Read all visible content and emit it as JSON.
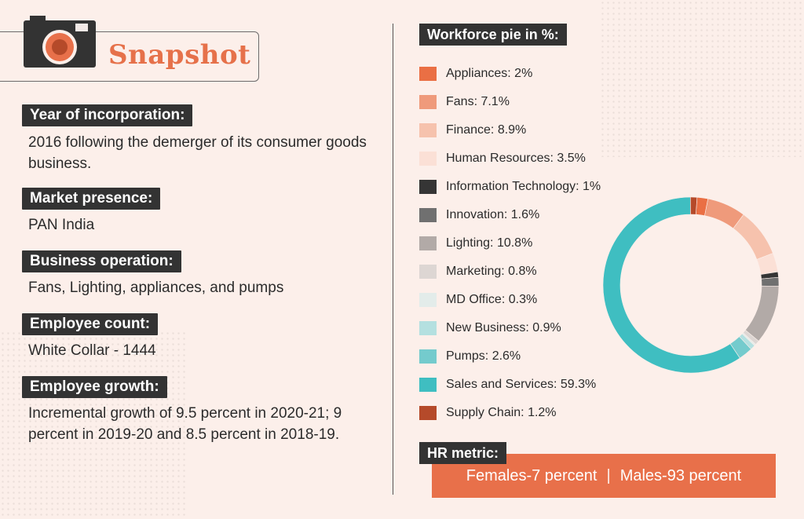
{
  "header": {
    "title": "Snapshot",
    "icon": "camera-icon"
  },
  "profile": {
    "year": {
      "label": "Year of incorporation:",
      "value": "2016 following the demerger of its consumer goods business."
    },
    "market": {
      "label": "Market presence:",
      "value": "PAN India"
    },
    "operation": {
      "label": "Business operation:",
      "value": "Fans, Lighting, appliances, and pumps"
    },
    "employees": {
      "label": "Employee count:",
      "value": "White Collar - 1444"
    },
    "growth": {
      "label": "Employee growth:",
      "value": "Incremental growth of 9.5 percent in 2020-21; 9 percent in 2019-20 and 8.5 percent in 2018-19."
    }
  },
  "hr_metric": {
    "label": "HR metric:",
    "females": "Females-7 percent",
    "separator": "|",
    "males": "Males-93 percent"
  },
  "chart_data": {
    "type": "pie",
    "donut": true,
    "title": "Workforce pie in %:",
    "unit": "%",
    "legend_placement": "left",
    "series": [
      {
        "label": "Appliances: 2%",
        "value": 2,
        "color": "#ea6f44"
      },
      {
        "label": "Fans: 7.1%",
        "value": 7.1,
        "color": "#ef9a7b"
      },
      {
        "label": "Finance: 8.9%",
        "value": 8.9,
        "color": "#f6c2ad"
      },
      {
        "label": "Human Resources: 3.5%",
        "value": 3.5,
        "color": "#fbe0d6"
      },
      {
        "label": "Information Technology: 1%",
        "value": 1,
        "color": "#353535"
      },
      {
        "label": "Innovation: 1.6%",
        "value": 1.6,
        "color": "#707070"
      },
      {
        "label": "Lighting: 10.8%",
        "value": 10.8,
        "color": "#b2aaa7"
      },
      {
        "label": "Marketing: 0.8%",
        "value": 0.8,
        "color": "#ddd6d3"
      },
      {
        "label": "MD Office: 0.3%",
        "value": 0.3,
        "color": "#e3ecea"
      },
      {
        "label": "New Business: 0.9%",
        "value": 0.9,
        "color": "#b4e0e0"
      },
      {
        "label": "Pumps: 2.6%",
        "value": 2.6,
        "color": "#74cbcd"
      },
      {
        "label": "Sales and Services: 59.3%",
        "value": 59.3,
        "color": "#3fbec1"
      },
      {
        "label": "Supply Chain: 1.2%",
        "value": 1.2,
        "color": "#b54a2a"
      }
    ]
  }
}
